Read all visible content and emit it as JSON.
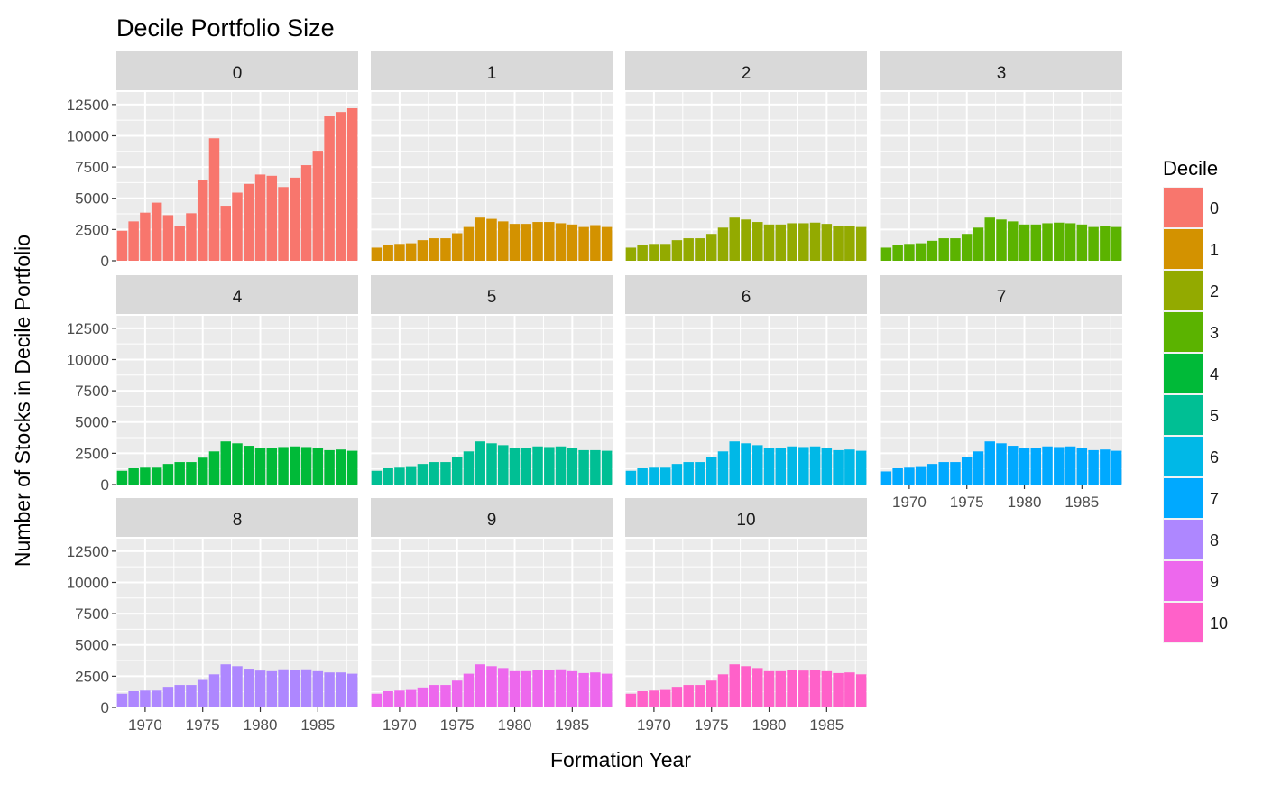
{
  "chart_data": {
    "type": "bar",
    "layout": "facet_wrap",
    "title": "Decile Portfolio Size",
    "xlabel": "Formation Year",
    "ylabel": "Number of Stocks in Decile Portfolio",
    "legend_title": "Decile",
    "legend_position": "right",
    "grid": true,
    "xlim": [
      1967.5,
      1988.5
    ],
    "ylim": [
      0,
      12500
    ],
    "x_ticks": [
      1970,
      1975,
      1980,
      1985
    ],
    "y_ticks": [
      0,
      2500,
      5000,
      7500,
      10000,
      12500
    ],
    "x_tick_labels": [
      "1970",
      "1975",
      "1980",
      "1985"
    ],
    "y_tick_labels": [
      "0",
      "2500",
      "5000",
      "7500",
      "10000",
      "12500"
    ],
    "x": [
      1968,
      1969,
      1970,
      1971,
      1972,
      1973,
      1974,
      1975,
      1976,
      1977,
      1978,
      1979,
      1980,
      1981,
      1982,
      1983,
      1984,
      1985,
      1986,
      1987,
      1988
    ],
    "series": [
      {
        "name": "0",
        "color": "#F8766D",
        "values": [
          2400,
          3150,
          3850,
          4650,
          3650,
          2750,
          3800,
          6450,
          9800,
          4400,
          5450,
          6150,
          6900,
          6800,
          5900,
          6650,
          7650,
          8800,
          11550,
          11900,
          12200
        ]
      },
      {
        "name": "1",
        "color": "#D39200",
        "values": [
          1050,
          1300,
          1350,
          1400,
          1650,
          1800,
          1800,
          2200,
          2700,
          3450,
          3350,
          3150,
          2950,
          2950,
          3100,
          3100,
          3000,
          2900,
          2700,
          2850,
          2700
        ]
      },
      {
        "name": "2",
        "color": "#93AA00",
        "values": [
          1050,
          1300,
          1350,
          1350,
          1650,
          1800,
          1800,
          2150,
          2650,
          3450,
          3300,
          3100,
          2900,
          2900,
          3000,
          3000,
          3050,
          2950,
          2750,
          2750,
          2700
        ]
      },
      {
        "name": "3",
        "color": "#5BB300",
        "values": [
          1050,
          1250,
          1350,
          1400,
          1600,
          1800,
          1800,
          2150,
          2650,
          3450,
          3300,
          3150,
          2900,
          2900,
          3000,
          3050,
          3000,
          2900,
          2700,
          2800,
          2700
        ]
      },
      {
        "name": "4",
        "color": "#00BA38",
        "values": [
          1100,
          1300,
          1350,
          1350,
          1650,
          1800,
          1800,
          2150,
          2650,
          3450,
          3300,
          3100,
          2900,
          2900,
          3000,
          3050,
          3000,
          2900,
          2750,
          2800,
          2700
        ]
      },
      {
        "name": "5",
        "color": "#00BF94",
        "values": [
          1100,
          1300,
          1350,
          1400,
          1650,
          1800,
          1800,
          2200,
          2650,
          3450,
          3300,
          3150,
          2950,
          2900,
          3050,
          3000,
          3050,
          2900,
          2750,
          2750,
          2700
        ]
      },
      {
        "name": "6",
        "color": "#00B8E7",
        "values": [
          1100,
          1300,
          1350,
          1350,
          1650,
          1800,
          1800,
          2200,
          2650,
          3450,
          3300,
          3150,
          2900,
          2900,
          3050,
          3000,
          3050,
          2900,
          2750,
          2800,
          2700
        ]
      },
      {
        "name": "7",
        "color": "#00A9FF",
        "values": [
          1050,
          1300,
          1350,
          1400,
          1650,
          1800,
          1800,
          2200,
          2650,
          3450,
          3300,
          3100,
          2950,
          2900,
          3050,
          3000,
          3050,
          2900,
          2750,
          2800,
          2700
        ]
      },
      {
        "name": "8",
        "color": "#AE87FF",
        "values": [
          1100,
          1300,
          1350,
          1350,
          1650,
          1800,
          1800,
          2200,
          2650,
          3450,
          3300,
          3100,
          2950,
          2900,
          3050,
          3000,
          3050,
          2900,
          2800,
          2800,
          2700
        ]
      },
      {
        "name": "9",
        "color": "#ED68ED",
        "values": [
          1100,
          1300,
          1350,
          1400,
          1600,
          1800,
          1800,
          2150,
          2700,
          3450,
          3300,
          3150,
          2900,
          2900,
          3000,
          3000,
          3050,
          2900,
          2750,
          2800,
          2700
        ]
      },
      {
        "name": "10",
        "color": "#FF61C9",
        "values": [
          1100,
          1300,
          1350,
          1400,
          1650,
          1800,
          1800,
          2150,
          2650,
          3450,
          3300,
          3150,
          2900,
          2900,
          3000,
          2950,
          3000,
          2900,
          2750,
          2800,
          2650
        ]
      }
    ]
  }
}
